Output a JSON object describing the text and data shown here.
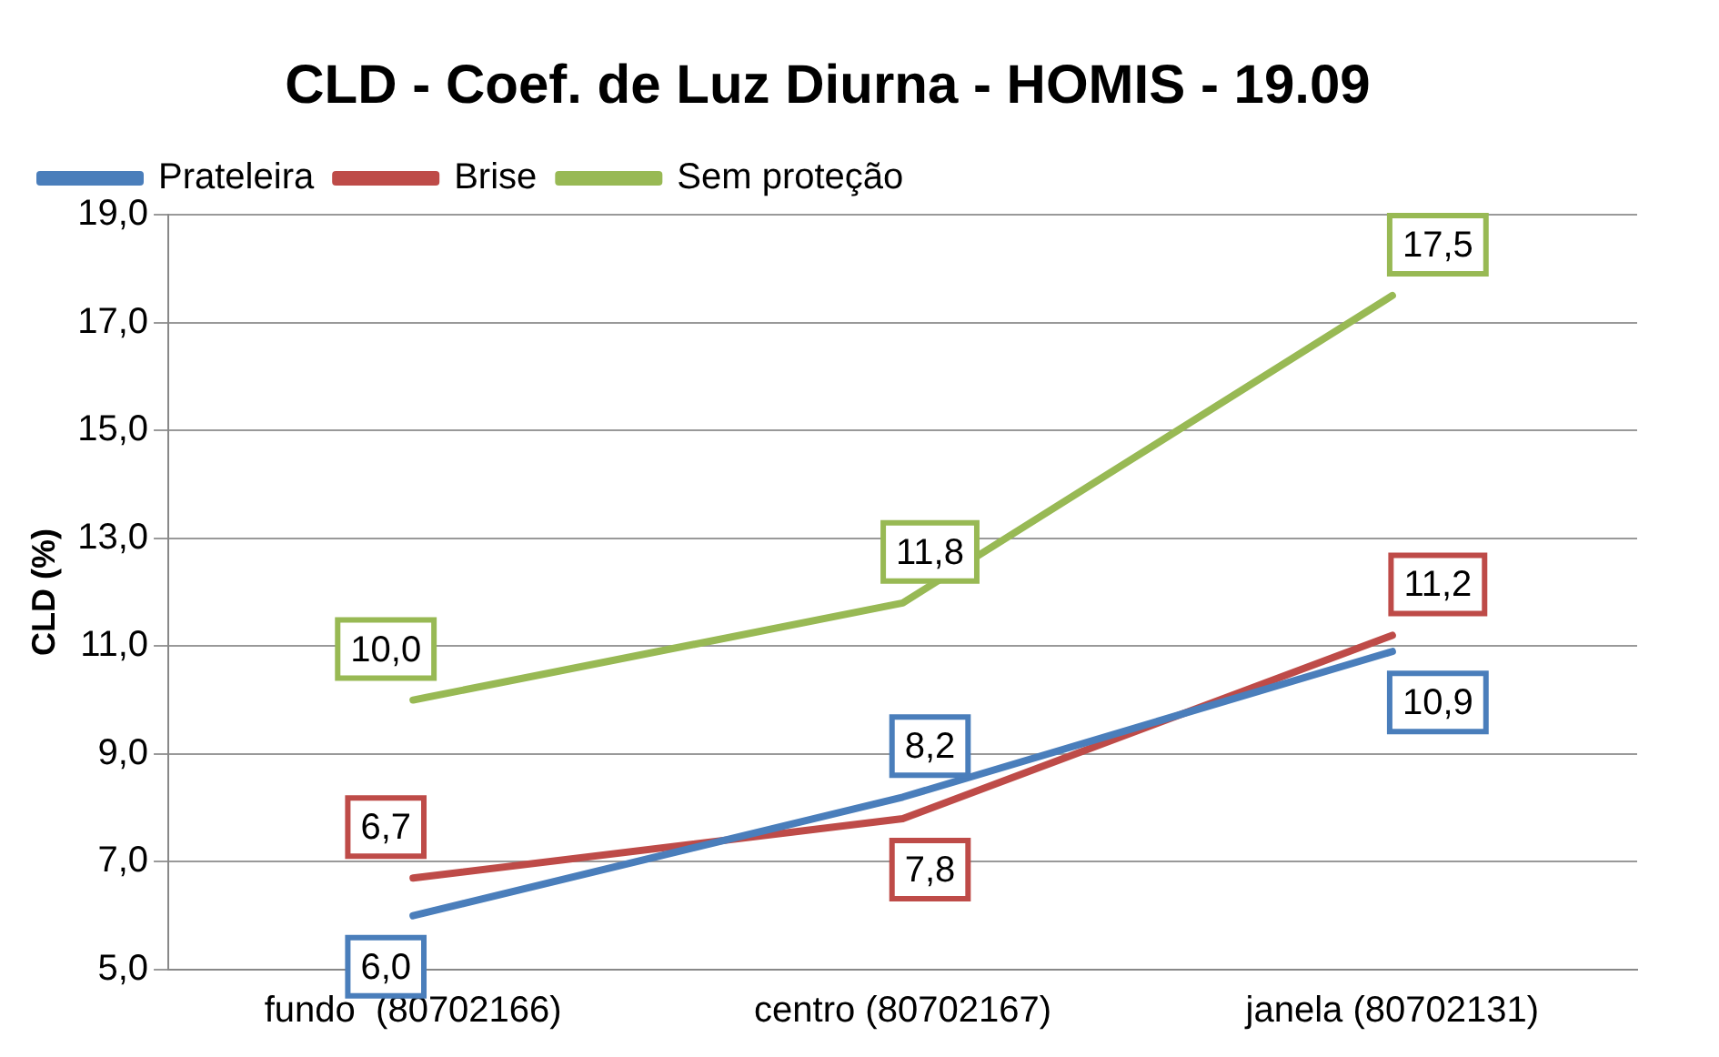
{
  "chart_data": {
    "type": "line",
    "title": "CLD - Coef. de Luz Diurna - HOMIS - 19.09",
    "ylabel": "CLD (%)",
    "categories": [
      "fundo  (80702166)",
      "centro (80702167)",
      "janela (80702131)"
    ],
    "series": [
      {
        "name": "Prateleira",
        "color": "#4a7ebb",
        "values": [
          6.0,
          8.2,
          10.9
        ],
        "value_labels": [
          "6,0",
          "8,2",
          "10,9"
        ]
      },
      {
        "name": "Brise",
        "color": "#be4b48",
        "values": [
          6.7,
          7.8,
          11.2
        ],
        "value_labels": [
          "6,7",
          "7,8",
          "11,2"
        ]
      },
      {
        "name": "Sem proteção",
        "color": "#98b954",
        "values": [
          10.0,
          11.8,
          17.5
        ],
        "value_labels": [
          "10,0",
          "11,8",
          "17,5"
        ]
      }
    ],
    "ylim": [
      5,
      19
    ],
    "yticks": [
      {
        "value": 5,
        "label": "5,0"
      },
      {
        "value": 7,
        "label": "7,0"
      },
      {
        "value": 9,
        "label": "9,0"
      },
      {
        "value": 11,
        "label": "11,0"
      },
      {
        "value": 13,
        "label": "13,0"
      },
      {
        "value": 15,
        "label": "15,0"
      },
      {
        "value": 17,
        "label": "17,0"
      },
      {
        "value": 19,
        "label": "19,0"
      }
    ],
    "grid": "y",
    "legend": "top",
    "marker": "none",
    "line_style": "solid"
  }
}
